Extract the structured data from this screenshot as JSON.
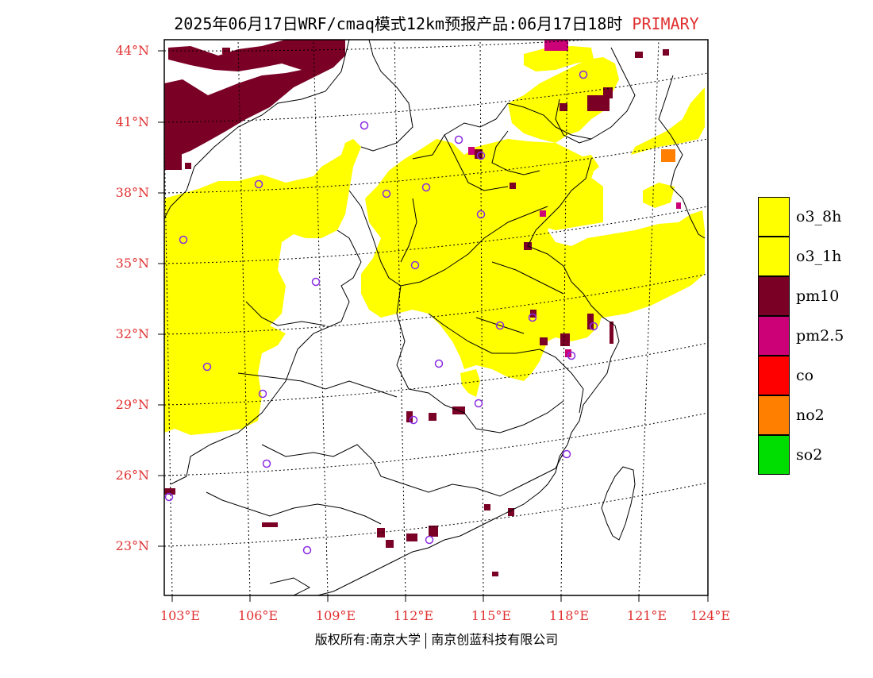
{
  "title": {
    "main": "2025年06月17日WRF/cmaq模式12km预报产品:06月17日18时",
    "tag": "PRIMARY"
  },
  "lat_labels": [
    "44°N",
    "41°N",
    "38°N",
    "35°N",
    "32°N",
    "29°N",
    "26°N",
    "23°N"
  ],
  "lon_labels": [
    "103°E",
    "106°E",
    "109°E",
    "112°E",
    "115°E",
    "118°E",
    "121°E",
    "124°E"
  ],
  "legend": [
    {
      "label": "o3_8h",
      "color": "#ffff00"
    },
    {
      "label": "o3_1h",
      "color": "#ffff00"
    },
    {
      "label": "pm10",
      "color": "#7a0026"
    },
    {
      "label": "pm2.5",
      "color": "#cc0077"
    },
    {
      "label": "co",
      "color": "#ff0000"
    },
    {
      "label": "no2",
      "color": "#ff7f00"
    },
    {
      "label": "so2",
      "color": "#00dd00"
    }
  ],
  "copyright": {
    "left": "版权所有:南京大学",
    "right": "南京创蓝科技有限公司"
  },
  "colors": {
    "o3": "#ffff00",
    "pm10": "#7a0026",
    "pm25": "#cc0077",
    "no2": "#ff7f00",
    "station": "#8a2be2",
    "label": "#e03030"
  }
}
